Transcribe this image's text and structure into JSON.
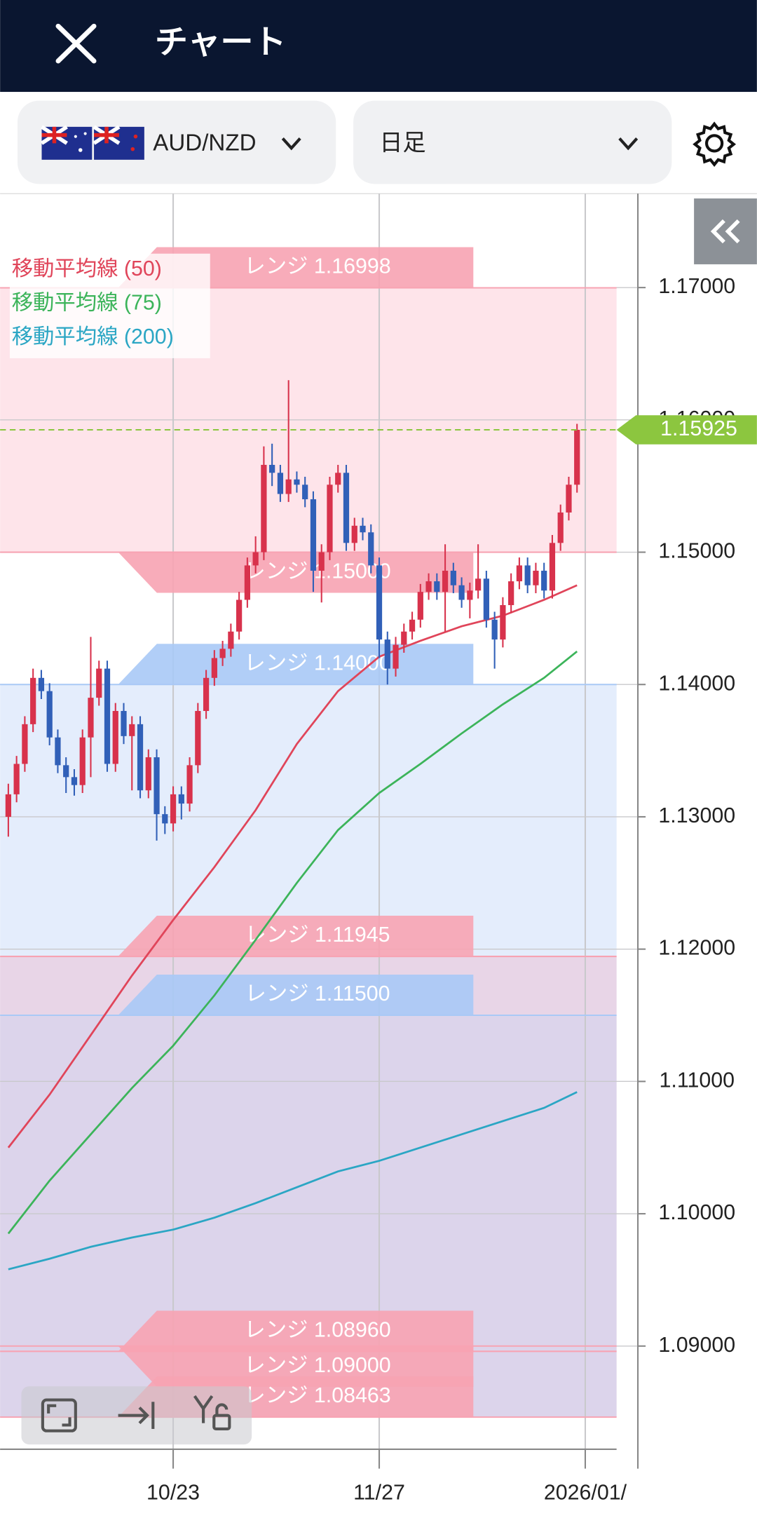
{
  "header": {
    "title": "チャート"
  },
  "toolbar": {
    "pair": "AUD/NZD",
    "timeframe": "日足"
  },
  "chart_data": {
    "type": "candlestick",
    "candles": {
      "open": [
        1.13,
        1.1317,
        1.134,
        1.137,
        1.1405,
        1.1395,
        1.136,
        1.1339,
        1.133,
        1.1324,
        1.136,
        1.139,
        1.1412,
        1.134,
        1.138,
        1.1361,
        1.137,
        1.132,
        1.1345,
        1.1302,
        1.1295,
        1.1317,
        1.131,
        1.1339,
        1.138,
        1.1405,
        1.142,
        1.1427,
        1.144,
        1.1464,
        1.149,
        1.15,
        1.1566,
        1.156,
        1.1544,
        1.1555,
        1.1551,
        1.154,
        1.1486,
        1.15,
        1.1551,
        1.156,
        1.1507,
        1.152,
        1.1515,
        1.149,
        1.1434,
        1.1412,
        1.143,
        1.144,
        1.1449,
        1.147,
        1.1478,
        1.147,
        1.1486,
        1.1475,
        1.1464,
        1.1471,
        1.148,
        1.1449,
        1.1434,
        1.146,
        1.1478,
        1.149,
        1.1475,
        1.1486,
        1.1471,
        1.1507,
        1.153,
        1.1551
      ],
      "high": [
        1.1325,
        1.1346,
        1.1376,
        1.1412,
        1.1411,
        1.1401,
        1.1366,
        1.1345,
        1.1336,
        1.1366,
        1.1436,
        1.1418,
        1.1418,
        1.1386,
        1.1386,
        1.1376,
        1.1376,
        1.1351,
        1.1351,
        1.1308,
        1.1323,
        1.1323,
        1.1345,
        1.1386,
        1.1411,
        1.1426,
        1.1433,
        1.1446,
        1.147,
        1.1496,
        1.1512,
        1.158,
        1.1582,
        1.1566,
        1.163,
        1.1561,
        1.1557,
        1.1546,
        1.1506,
        1.1557,
        1.1566,
        1.1566,
        1.1526,
        1.1526,
        1.1521,
        1.1496,
        1.144,
        1.1436,
        1.1446,
        1.1455,
        1.1476,
        1.1484,
        1.1484,
        1.1506,
        1.1492,
        1.1481,
        1.1477,
        1.1506,
        1.1486,
        1.1455,
        1.1466,
        1.1484,
        1.1496,
        1.1496,
        1.1492,
        1.1492,
        1.1513,
        1.1536,
        1.1557,
        1.1597
      ],
      "low": [
        1.1285,
        1.1311,
        1.1334,
        1.1364,
        1.1389,
        1.1354,
        1.1333,
        1.1318,
        1.1316,
        1.1318,
        1.133,
        1.1384,
        1.1334,
        1.1334,
        1.1355,
        1.132,
        1.1314,
        1.1314,
        1.1282,
        1.1287,
        1.1289,
        1.1298,
        1.1304,
        1.1333,
        1.1374,
        1.1399,
        1.1414,
        1.1421,
        1.1434,
        1.1458,
        1.1484,
        1.1494,
        1.155,
        1.1538,
        1.1538,
        1.1545,
        1.1534,
        1.147,
        1.1462,
        1.1494,
        1.1545,
        1.1501,
        1.1501,
        1.1509,
        1.1484,
        1.142,
        1.14,
        1.1406,
        1.1424,
        1.1434,
        1.1443,
        1.1464,
        1.1464,
        1.144,
        1.1469,
        1.1458,
        1.145,
        1.1465,
        1.1443,
        1.1412,
        1.1428,
        1.1454,
        1.1472,
        1.1469,
        1.1469,
        1.1465,
        1.1465,
        1.1501,
        1.1524,
        1.1545
      ],
      "close": [
        1.1317,
        1.134,
        1.137,
        1.1405,
        1.1395,
        1.136,
        1.1339,
        1.133,
        1.1324,
        1.136,
        1.139,
        1.1412,
        1.134,
        1.138,
        1.1361,
        1.137,
        1.132,
        1.1345,
        1.1302,
        1.1295,
        1.1317,
        1.131,
        1.1339,
        1.138,
        1.1405,
        1.142,
        1.1427,
        1.144,
        1.1464,
        1.149,
        1.15,
        1.1566,
        1.156,
        1.1544,
        1.1555,
        1.1551,
        1.154,
        1.1486,
        1.15,
        1.1551,
        1.156,
        1.1507,
        1.152,
        1.1515,
        1.149,
        1.1434,
        1.1412,
        1.143,
        1.144,
        1.1449,
        1.147,
        1.1478,
        1.147,
        1.1486,
        1.1475,
        1.1464,
        1.1471,
        1.148,
        1.1449,
        1.1434,
        1.146,
        1.1478,
        1.149,
        1.1475,
        1.1486,
        1.1471,
        1.1507,
        1.153,
        1.1551,
        1.15925
      ],
      "up_color": "#d8324c",
      "down_color": "#3160b8"
    },
    "series": [
      {
        "name": "移動平均線 (50)",
        "color": "#e0455a",
        "x": [
          0,
          5,
          10,
          15,
          20,
          25,
          30,
          35,
          40,
          45,
          50,
          55,
          60,
          65,
          69
        ],
        "values": [
          1.105,
          1.109,
          1.1135,
          1.118,
          1.1222,
          1.1262,
          1.1305,
          1.1355,
          1.1395,
          1.1421,
          1.1433,
          1.1444,
          1.1452,
          1.1464,
          1.1475
        ]
      },
      {
        "name": "移動平均線 (75)",
        "color": "#3cb45a",
        "x": [
          0,
          5,
          10,
          15,
          20,
          25,
          30,
          35,
          40,
          45,
          50,
          55,
          60,
          65,
          69
        ],
        "values": [
          1.0985,
          1.1025,
          1.106,
          1.1095,
          1.1127,
          1.1165,
          1.1207,
          1.125,
          1.129,
          1.1318,
          1.134,
          1.1363,
          1.1385,
          1.1405,
          1.1425
        ]
      },
      {
        "name": "移動平均線 (200)",
        "color": "#2ba6c4",
        "x": [
          0,
          5,
          10,
          15,
          20,
          25,
          30,
          35,
          40,
          45,
          50,
          55,
          60,
          65,
          69
        ],
        "values": [
          1.0958,
          1.0966,
          1.0975,
          1.0982,
          1.0988,
          1.0997,
          1.1008,
          1.102,
          1.1032,
          1.104,
          1.105,
          1.106,
          1.107,
          1.108,
          1.1092
        ]
      }
    ],
    "bands": [
      {
        "from": 1.15,
        "to": 1.16998,
        "color": "rgba(250,120,150,0.2)"
      },
      {
        "from": 1.115,
        "to": 1.14,
        "color": "rgba(120,165,240,0.2)"
      },
      {
        "from": 1.08463,
        "to": 1.11945,
        "color": "rgba(250,120,150,0.2)"
      },
      {
        "from": 1.08463,
        "to": 1.115,
        "color": "rgba(120,165,240,0.25)"
      }
    ],
    "ranges": [
      {
        "text": "レンジ 1.16998",
        "level": 1.16998,
        "color": "#f7a3b3",
        "side": "up"
      },
      {
        "text": "レンジ 1.15000",
        "level": 1.15,
        "color": "#f7a3b3",
        "side": "down"
      },
      {
        "text": "レンジ 1.14000",
        "level": 1.14,
        "color": "#a9c9f6",
        "side": "up"
      },
      {
        "text": "レンジ 1.11945",
        "level": 1.11945,
        "color": "#f7a3b3",
        "side": "up"
      },
      {
        "text": "レンジ 1.11500",
        "level": 1.115,
        "color": "#a9c9f6",
        "side": "up"
      },
      {
        "text": "レンジ 1.08960",
        "level": 1.0896,
        "color": "#f7a3b3",
        "side": "up"
      },
      {
        "text": "レンジ 1.09000",
        "level": 1.09,
        "color": "#f7a3b3",
        "side": "down"
      },
      {
        "text": "レンジ 1.08463",
        "level": 1.08463,
        "color": "#f7a3b3",
        "side": "up"
      }
    ],
    "last_price": 1.15925,
    "last_price_color": "#8cc63f",
    "xlim": [
      -1,
      73.8
    ],
    "xticks": [
      {
        "value": 20,
        "label": "10/23"
      },
      {
        "value": 45,
        "label": "11/27"
      },
      {
        "value": 70,
        "label": "2026/01/"
      }
    ],
    "ylim": [
      1.0822,
      1.1771
    ],
    "yticks": [
      {
        "value": 1.09,
        "label": "1.09000"
      },
      {
        "value": 1.1,
        "label": "1.10000"
      },
      {
        "value": 1.11,
        "label": "1.11000"
      },
      {
        "value": 1.12,
        "label": "1.12000"
      },
      {
        "value": 1.13,
        "label": "1.13000"
      },
      {
        "value": 1.14,
        "label": "1.14000"
      },
      {
        "value": 1.15,
        "label": "1.15000"
      },
      {
        "value": 1.16,
        "label": "1.16000"
      },
      {
        "value": 1.17,
        "label": "1.17000"
      }
    ],
    "grid": true
  }
}
